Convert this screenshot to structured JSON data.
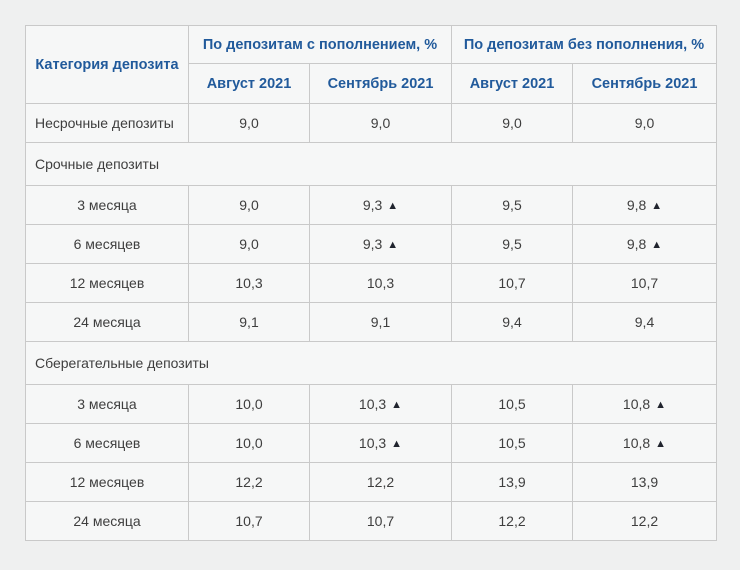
{
  "colors": {
    "page_bg": "#eff0f0",
    "cell_bg": "#f6f7f7",
    "border": "#c9c9c9",
    "header_text": "#215a9b",
    "body_text": "#3e3e3e",
    "triangle": "#20242e"
  },
  "chart_data": {
    "type": "table",
    "corner_header": "Категория депозита",
    "group_headers": [
      "По депозитам с пополнением, %",
      "По депозитам без пополнения, %"
    ],
    "month_headers": [
      "Август 2021",
      "Сентябрь 2021",
      "Август 2021",
      "Сентябрь 2021"
    ],
    "increase_marker": "▲",
    "rows": [
      {
        "type": "data",
        "label": "Несрочные депозиты",
        "align": "left",
        "values": [
          {
            "v": "9,0"
          },
          {
            "v": "9,0"
          },
          {
            "v": "9,0"
          },
          {
            "v": "9,0"
          }
        ]
      },
      {
        "type": "section",
        "label": "Срочные депозиты"
      },
      {
        "type": "data",
        "label": "3 месяца",
        "align": "center",
        "values": [
          {
            "v": "9,0"
          },
          {
            "v": "9,3",
            "up": true
          },
          {
            "v": "9,5"
          },
          {
            "v": "9,8",
            "up": true
          }
        ]
      },
      {
        "type": "data",
        "label": "6 месяцев",
        "align": "center",
        "values": [
          {
            "v": "9,0"
          },
          {
            "v": "9,3",
            "up": true
          },
          {
            "v": "9,5"
          },
          {
            "v": "9,8",
            "up": true
          }
        ]
      },
      {
        "type": "data",
        "label": "12 месяцев",
        "align": "center",
        "values": [
          {
            "v": "10,3"
          },
          {
            "v": "10,3"
          },
          {
            "v": "10,7"
          },
          {
            "v": "10,7"
          }
        ]
      },
      {
        "type": "data",
        "label": "24 месяца",
        "align": "center",
        "values": [
          {
            "v": "9,1"
          },
          {
            "v": "9,1"
          },
          {
            "v": "9,4"
          },
          {
            "v": "9,4"
          }
        ]
      },
      {
        "type": "section",
        "label": "Сберегательные депозиты"
      },
      {
        "type": "data",
        "label": "3 месяца",
        "align": "center",
        "values": [
          {
            "v": "10,0"
          },
          {
            "v": "10,3",
            "up": true
          },
          {
            "v": "10,5"
          },
          {
            "v": "10,8",
            "up": true
          }
        ]
      },
      {
        "type": "data",
        "label": "6 месяцев",
        "align": "center",
        "values": [
          {
            "v": "10,0"
          },
          {
            "v": "10,3",
            "up": true
          },
          {
            "v": "10,5"
          },
          {
            "v": "10,8",
            "up": true
          }
        ]
      },
      {
        "type": "data",
        "label": "12 месяцев",
        "align": "center",
        "values": [
          {
            "v": "12,2"
          },
          {
            "v": "12,2"
          },
          {
            "v": "13,9"
          },
          {
            "v": "13,9"
          }
        ]
      },
      {
        "type": "data",
        "label": "24 месяца",
        "align": "center",
        "values": [
          {
            "v": "10,7"
          },
          {
            "v": "10,7"
          },
          {
            "v": "12,2"
          },
          {
            "v": "12,2"
          }
        ]
      }
    ]
  }
}
